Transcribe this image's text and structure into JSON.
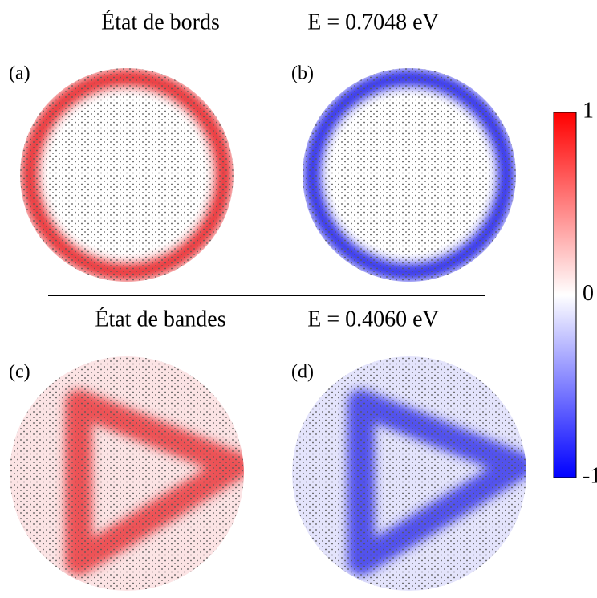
{
  "rows": [
    {
      "title": "État de bords",
      "energy": "E = 0.7048 eV",
      "panels": [
        {
          "label": "(a)",
          "color": "#e82028"
        },
        {
          "label": "(b)",
          "color": "#2020e8"
        }
      ]
    },
    {
      "title": "État de bandes",
      "energy": "E = 0.4060 eV",
      "panels": [
        {
          "label": "(c)",
          "color": "#e82028"
        },
        {
          "label": "(d)",
          "color": "#2020e8"
        }
      ]
    }
  ],
  "colorbar": {
    "lim": [
      -1,
      1
    ],
    "ticks": [
      1,
      0,
      -1
    ],
    "colors": [
      "#0000ff",
      "#ffffff",
      "#ff0000"
    ]
  }
}
